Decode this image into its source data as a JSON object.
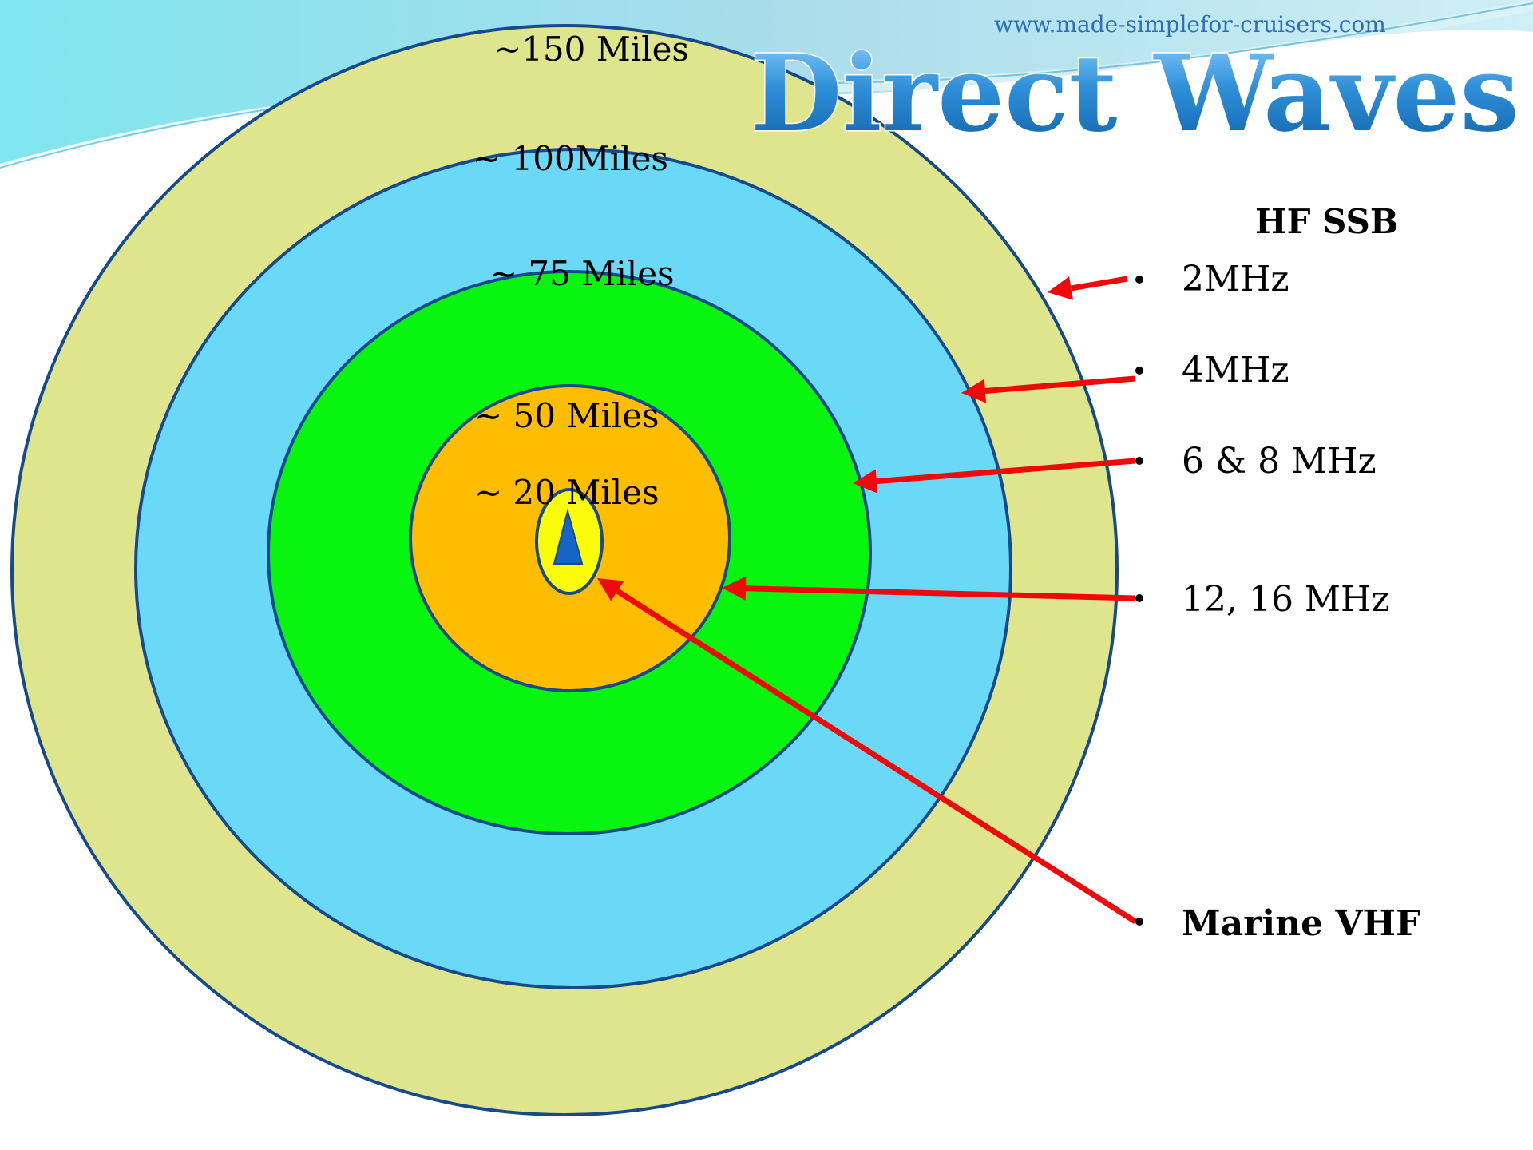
{
  "header": {
    "url": "www.made-simplefor-cruisers.com",
    "title": "Direct Waves"
  },
  "rings": [
    {
      "label": "~150 Miles",
      "color": "#dfe58c"
    },
    {
      "label": "~ 100Miles",
      "color": "#69d9f7"
    },
    {
      "label": "~ 75 Miles",
      "color": "#08f50f"
    },
    {
      "label": "~ 50 Miles",
      "color": "#ffbd00"
    },
    {
      "label": "~ 20 Miles",
      "color": "#fbfb0c"
    }
  ],
  "legend": {
    "heading": "HF SSB",
    "items": [
      {
        "label": "2MHz",
        "bold": false
      },
      {
        "label": "4MHz",
        "bold": false
      },
      {
        "label": "6 & 8 MHz",
        "bold": false
      },
      {
        "label": "12, 16 MHz",
        "bold": false
      },
      {
        "label": "Marine VHF",
        "bold": true
      }
    ]
  },
  "colors": {
    "ring_stroke": "#174a8a",
    "arrow": "#ee0a0a",
    "antenna": "#1565c8",
    "title_fill": "#2f8fd8",
    "title_outline": "#ffffff"
  },
  "icons": {
    "antenna": "antenna-icon",
    "arrow": "arrow-icon",
    "bullet": "bullet-icon"
  }
}
